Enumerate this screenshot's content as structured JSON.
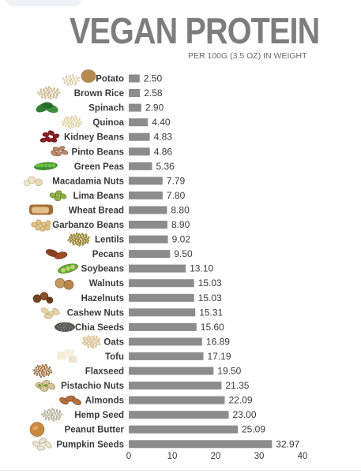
{
  "header": {
    "title": "VEGAN PROTEIN",
    "subtitle": "PER  100G (3.5 OZ) IN WEIGHT"
  },
  "chart_data": {
    "type": "bar",
    "orientation": "horizontal",
    "title": "VEGAN PROTEIN",
    "subtitle": "PER  100G (3.5 OZ) IN WEIGHT",
    "categories": [
      "Potato",
      "Brown Rice",
      "Spinach",
      "Quinoa",
      "Kidney Beans",
      "Pinto Beans",
      "Green Peas",
      "Macadamia Nuts",
      "Lima Beans",
      "Wheat Bread",
      "Garbanzo Beans",
      "Lentils",
      "Pecans",
      "Soybeans",
      "Walnuts",
      "Hazelnuts",
      "Cashew Nuts",
      "Chia Seeds",
      "Oats",
      "Tofu",
      "Flaxseed",
      "Pistachio Nuts",
      "Almonds",
      "Hemp Seed",
      "Peanut Butter",
      "Pumpkin Seeds"
    ],
    "values": [
      2.5,
      2.58,
      2.9,
      4.4,
      4.83,
      4.86,
      5.36,
      7.79,
      7.8,
      8.8,
      8.9,
      9.02,
      9.5,
      13.1,
      15.03,
      15.03,
      15.31,
      15.6,
      16.89,
      17.19,
      19.5,
      21.35,
      22.09,
      23.0,
      25.09,
      32.97
    ],
    "value_labels": [
      "2.50",
      "2.58",
      "2.90",
      "4.40",
      "4.83",
      "4.86",
      "5.36",
      "7.79",
      "7.80",
      "8.80",
      "8.90",
      "9.02",
      "9.50",
      "13.10",
      "15.03",
      "15.03",
      "15.31",
      "15.60",
      "16.89",
      "17.19",
      "19.50",
      "21.35",
      "22.09",
      "23.00",
      "25.09",
      "32.97"
    ],
    "xlim": [
      0,
      40
    ],
    "xticks": [
      0,
      10,
      20,
      30,
      40
    ],
    "xlabel": "",
    "ylabel": "",
    "grid": false,
    "legend": "none",
    "bar_color": "#8c8c8c",
    "text_color": "#3a3a3a",
    "food_icons": [
      "potato-icon",
      "brown-rice-icon",
      "spinach-icon",
      "quinoa-icon",
      "kidney-beans-icon",
      "pinto-beans-icon",
      "green-peas-icon",
      "macadamia-nuts-icon",
      "lima-beans-icon",
      "wheat-bread-icon",
      "garbanzo-beans-icon",
      "lentils-icon",
      "pecans-icon",
      "soybeans-icon",
      "walnuts-icon",
      "hazelnuts-icon",
      "cashew-nuts-icon",
      "chia-seeds-icon",
      "oats-icon",
      "tofu-icon",
      "flaxseed-icon",
      "pistachio-nuts-icon",
      "almonds-icon",
      "hemp-seed-icon",
      "peanut-butter-icon",
      "pumpkin-seeds-icon"
    ]
  }
}
